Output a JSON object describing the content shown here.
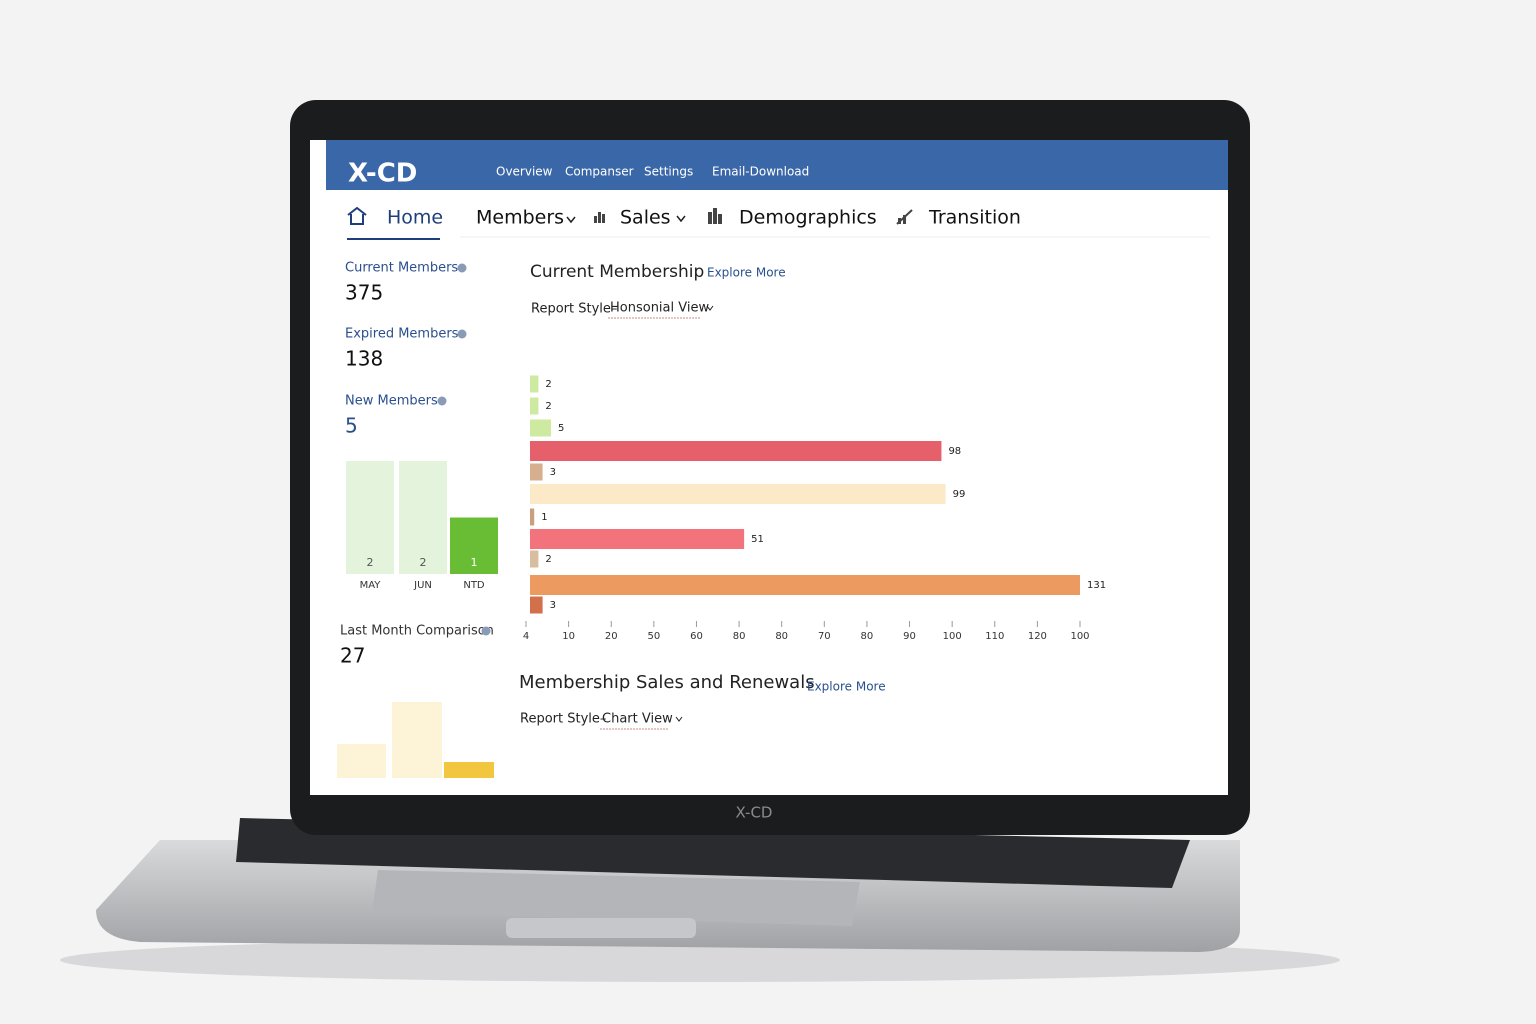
{
  "brand": "X-CD",
  "laptop_brand": "X-CD",
  "top_nav": [
    "Overview",
    "Companser",
    "Settings",
    "Email-Download"
  ],
  "main_nav": [
    "Home",
    "Members",
    "Sales",
    "Demographics",
    "Transition"
  ],
  "stats": [
    {
      "label": "Current Members",
      "value": 375
    },
    {
      "label": "Expired Members",
      "value": 138
    },
    {
      "label": "New Members",
      "value": 5
    }
  ],
  "new_members_chart": {
    "categories": [
      "MAY",
      "JUN",
      "NTD"
    ],
    "values": [
      2,
      2,
      1
    ],
    "colors": [
      "#e3f3dc",
      "#e3f3dc",
      "#69bd35"
    ]
  },
  "last_month": {
    "label": "Last Month Comparison",
    "value": 27
  },
  "current_membership": {
    "title": "Current Membership",
    "link": "Explore More",
    "report_label": "Report Style–",
    "report_value": "Honsonial View",
    "values": [
      2,
      2,
      5,
      98,
      3,
      99,
      1,
      51,
      2,
      131,
      3
    ],
    "colors": [
      "#cdeaa0",
      "#cdeaa0",
      "#cdeaa0",
      "#e5606b",
      "#d6b08e",
      "#fbe9c8",
      "#c9a07b",
      "#f2737c",
      "#d8bd9e",
      "#ec9a60",
      "#d3704c"
    ],
    "axis_labels": [
      "4",
      "10",
      "20",
      "50",
      "60",
      "80",
      "80",
      "70",
      "80",
      "90",
      "100",
      "110",
      "120",
      "100"
    ]
  },
  "sales_renewals": {
    "title": "Membership Sales and Renewals",
    "link": "Explore More",
    "report_label": "Report Style–",
    "report_value": "Chart View"
  }
}
